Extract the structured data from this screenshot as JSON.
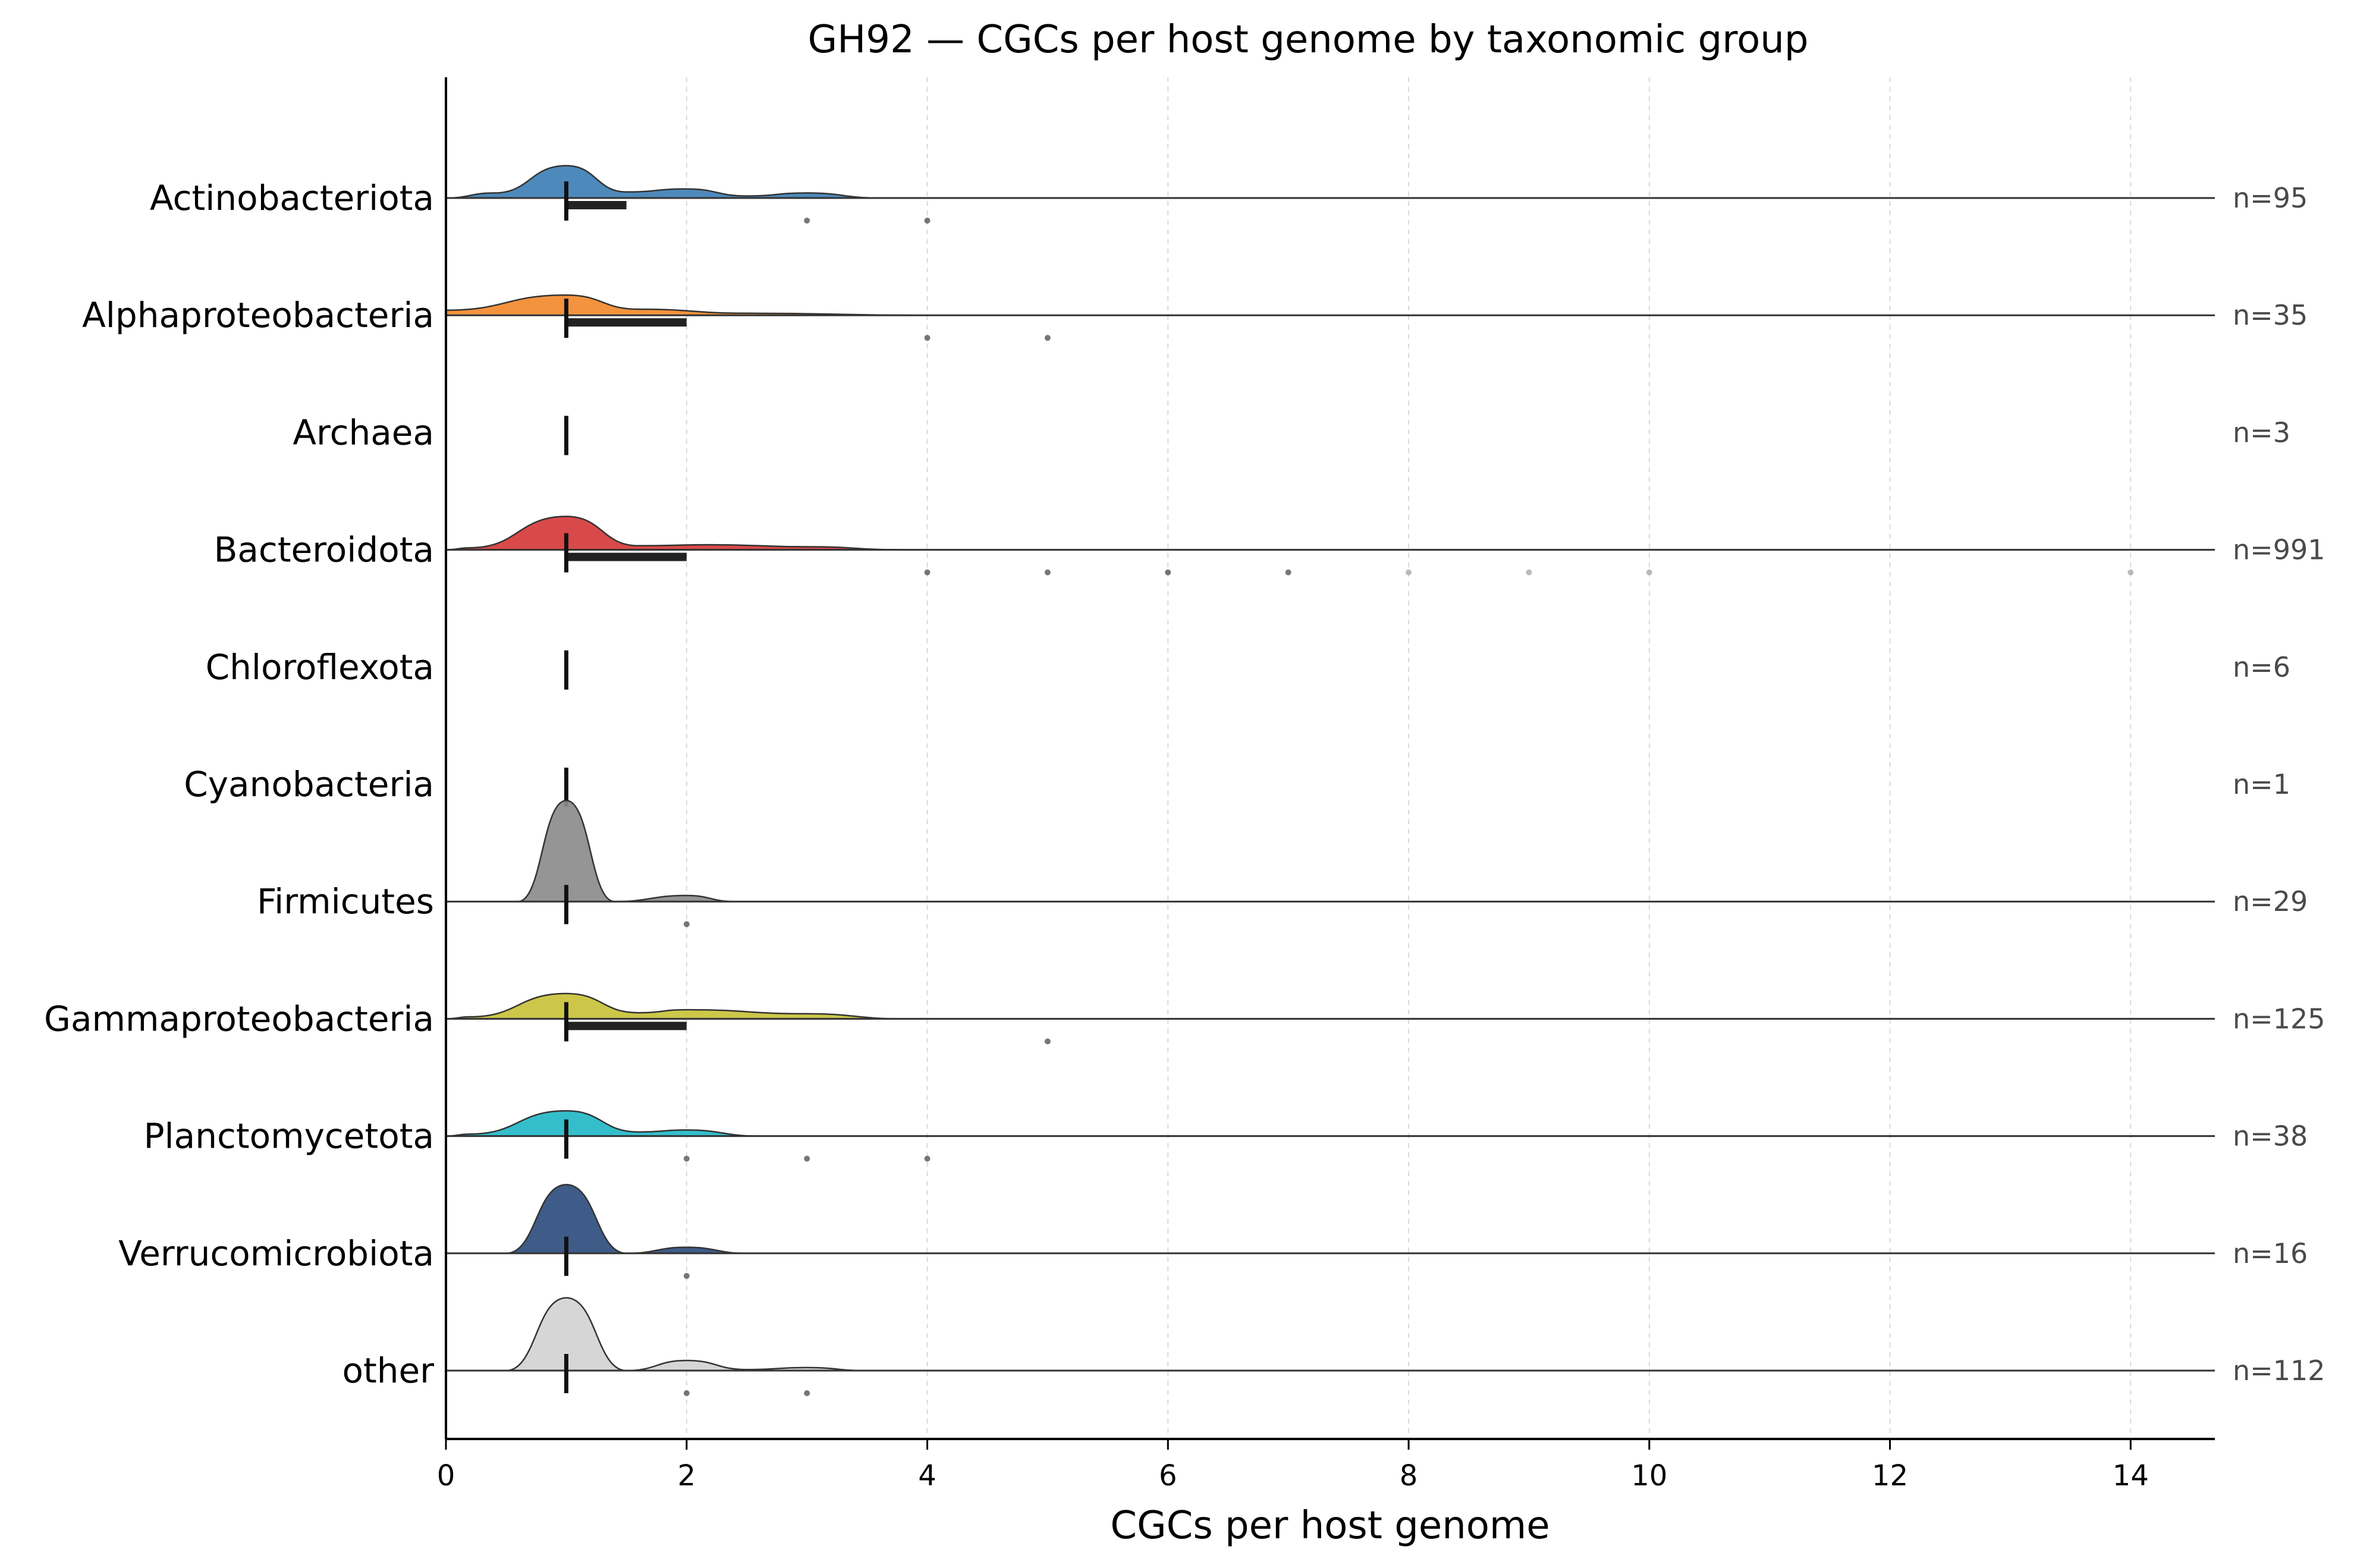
{
  "chart_data": {
    "type": "ridgeline",
    "title": "GH92 — CGCs per host genome by taxonomic group",
    "xlabel": "CGCs per host genome",
    "ylabel": "",
    "xlim": [
      0,
      14.7
    ],
    "xticks": [
      0,
      2,
      4,
      6,
      8,
      10,
      12,
      14
    ],
    "grid": "vertical dashed",
    "groups": [
      {
        "label": "Actinobacteriota",
        "n_label": "n=95",
        "color": "#3f7fb5",
        "density": [
          [
            0.4,
            0.05
          ],
          [
            1,
            0.32
          ],
          [
            1.5,
            0.06
          ],
          [
            2,
            0.09
          ],
          [
            2.5,
            0.02
          ],
          [
            3,
            0.05
          ],
          [
            3.6,
            0
          ]
        ],
        "median": 1,
        "q1": 1,
        "q3": 1.5,
        "outliers": [
          3,
          4
        ]
      },
      {
        "label": "Alphaproteobacteria",
        "n_label": "n=35",
        "color": "#f28a2e",
        "density": [
          [
            0,
            0.05
          ],
          [
            1,
            0.2
          ],
          [
            1.6,
            0.06
          ],
          [
            2.5,
            0.02
          ],
          [
            4,
            0
          ]
        ],
        "median": 1,
        "q1": 1,
        "q3": 2,
        "outliers": [
          4,
          5
        ]
      },
      {
        "label": "Archaea",
        "n_label": "n=3",
        "color": "#8a8a8a",
        "density": [],
        "median": 1,
        "q1": 1,
        "q3": 1,
        "outliers": []
      },
      {
        "label": "Bacteroidota",
        "n_label": "n=991",
        "color": "#d63a3a",
        "density": [
          [
            0.2,
            0.02
          ],
          [
            1,
            0.33
          ],
          [
            1.6,
            0.04
          ],
          [
            2.2,
            0.05
          ],
          [
            3,
            0.03
          ],
          [
            3.8,
            0
          ]
        ],
        "median": 1,
        "q1": 1,
        "q3": 2,
        "outliers": [
          4,
          5,
          6,
          7,
          8,
          9,
          10,
          14
        ]
      },
      {
        "label": "Chloroflexota",
        "n_label": "n=6",
        "color": "#8a8a8a",
        "density": [],
        "median": 1,
        "q1": 1,
        "q3": 1,
        "outliers": []
      },
      {
        "label": "Cyanobacteria",
        "n_label": "n=1",
        "color": "#8a8a8a",
        "density": [],
        "median": 1,
        "q1": 1,
        "q3": 1,
        "outliers": []
      },
      {
        "label": "Firmicutes",
        "n_label": "n=29",
        "color": "#8c8c8c",
        "density": [
          [
            0.6,
            0
          ],
          [
            1,
            1
          ],
          [
            1.4,
            0
          ],
          [
            2,
            0.06
          ],
          [
            2.4,
            0
          ]
        ],
        "median": 1,
        "q1": 1,
        "q3": 1,
        "outliers": [
          2
        ]
      },
      {
        "label": "Gammaproteobacteria",
        "n_label": "n=125",
        "color": "#c9c23a",
        "density": [
          [
            0.2,
            0.02
          ],
          [
            1,
            0.25
          ],
          [
            1.6,
            0.06
          ],
          [
            2,
            0.09
          ],
          [
            3,
            0.05
          ],
          [
            3.8,
            0
          ]
        ],
        "median": 1,
        "q1": 1,
        "q3": 2,
        "outliers": [
          5
        ]
      },
      {
        "label": "Planctomycetota",
        "n_label": "n=38",
        "color": "#23b8c8",
        "density": [
          [
            0.2,
            0.02
          ],
          [
            1,
            0.25
          ],
          [
            1.6,
            0.04
          ],
          [
            2,
            0.06
          ],
          [
            2.6,
            0
          ]
        ],
        "median": 1,
        "q1": 1,
        "q3": 1,
        "outliers": [
          2,
          3,
          4
        ]
      },
      {
        "label": "Verrucomicrobiota",
        "n_label": "n=16",
        "color": "#2f4d7e",
        "density": [
          [
            0.5,
            0
          ],
          [
            1,
            0.68
          ],
          [
            1.5,
            0
          ],
          [
            2,
            0.06
          ],
          [
            2.5,
            0
          ]
        ],
        "median": 1,
        "q1": 1,
        "q3": 1,
        "outliers": [
          2
        ]
      },
      {
        "label": "other",
        "n_label": "n=112",
        "color": "#d3d3d3",
        "density": [
          [
            0.5,
            0
          ],
          [
            1,
            0.72
          ],
          [
            1.5,
            0
          ],
          [
            2,
            0.1
          ],
          [
            2.5,
            0.01
          ],
          [
            3,
            0.03
          ],
          [
            3.5,
            0
          ]
        ],
        "median": 1,
        "q1": 1,
        "q3": 1,
        "outliers": [
          2,
          3
        ]
      }
    ]
  }
}
